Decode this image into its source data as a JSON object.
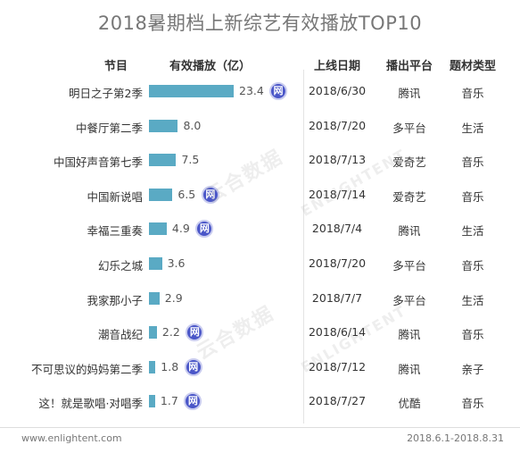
{
  "title": "2018暑期档上新综艺有效播放TOP10",
  "headers": {
    "program": "节目",
    "views": "有效播放（亿）",
    "date": "上线日期",
    "platform": "播出平台",
    "type": "题材类型"
  },
  "badge_text": "网",
  "rows": [
    {
      "name": "明日之子第2季",
      "value": "23.4",
      "date": "2018/6/30",
      "platform": "腾讯",
      "type": "音乐",
      "badge": true
    },
    {
      "name": "中餐厅第二季",
      "value": "8.0",
      "date": "2018/7/20",
      "platform": "多平台",
      "type": "生活",
      "badge": false
    },
    {
      "name": "中国好声音第七季",
      "value": "7.5",
      "date": "2018/7/13",
      "platform": "爱奇艺",
      "type": "音乐",
      "badge": false
    },
    {
      "name": "中国新说唱",
      "value": "6.5",
      "date": "2018/7/14",
      "platform": "爱奇艺",
      "type": "音乐",
      "badge": true
    },
    {
      "name": "幸福三重奏",
      "value": "4.9",
      "date": "2018/7/4",
      "platform": "腾讯",
      "type": "生活",
      "badge": true
    },
    {
      "name": "幻乐之城",
      "value": "3.6",
      "date": "2018/7/20",
      "platform": "多平台",
      "type": "音乐",
      "badge": false
    },
    {
      "name": "我家那小子",
      "value": "2.9",
      "date": "2018/7/7",
      "platform": "多平台",
      "type": "生活",
      "badge": false
    },
    {
      "name": "潮音战纪",
      "value": "2.2",
      "date": "2018/6/14",
      "platform": "腾讯",
      "type": "音乐",
      "badge": true
    },
    {
      "name": "不可思议的妈妈第二季",
      "value": "1.8",
      "date": "2018/7/12",
      "platform": "腾讯",
      "type": "亲子",
      "badge": true
    },
    {
      "name": "这！就是歌唱·对唱季",
      "value": "1.7",
      "date": "2018/7/27",
      "platform": "优酷",
      "type": "音乐",
      "badge": true
    }
  ],
  "chart_data": {
    "type": "bar",
    "title": "2018暑期档上新综艺有效播放TOP10",
    "categories": [
      "明日之子第2季",
      "中餐厅第二季",
      "中国好声音第七季",
      "中国新说唱",
      "幸福三重奏",
      "幻乐之城",
      "我家那小子",
      "潮音战纪",
      "不可思议的妈妈第二季",
      "这！就是歌唱·对唱季"
    ],
    "values": [
      23.4,
      8.0,
      7.5,
      6.5,
      4.9,
      3.6,
      2.9,
      2.2,
      1.8,
      1.7
    ],
    "xlabel": "有效播放（亿）",
    "ylabel": "节目",
    "xlim": [
      0,
      23.4
    ],
    "grid": false,
    "bar_color": "#5aaac4"
  },
  "footer": {
    "left": "www.enlightent.com",
    "right": "2018.6.1-2018.8.31"
  },
  "watermark": {
    "cn": "云合数据",
    "en": "ENLIGHTENT"
  },
  "colors": {
    "bar": "#5aaac4",
    "badge": "#4a56c8",
    "title": "#777777"
  }
}
